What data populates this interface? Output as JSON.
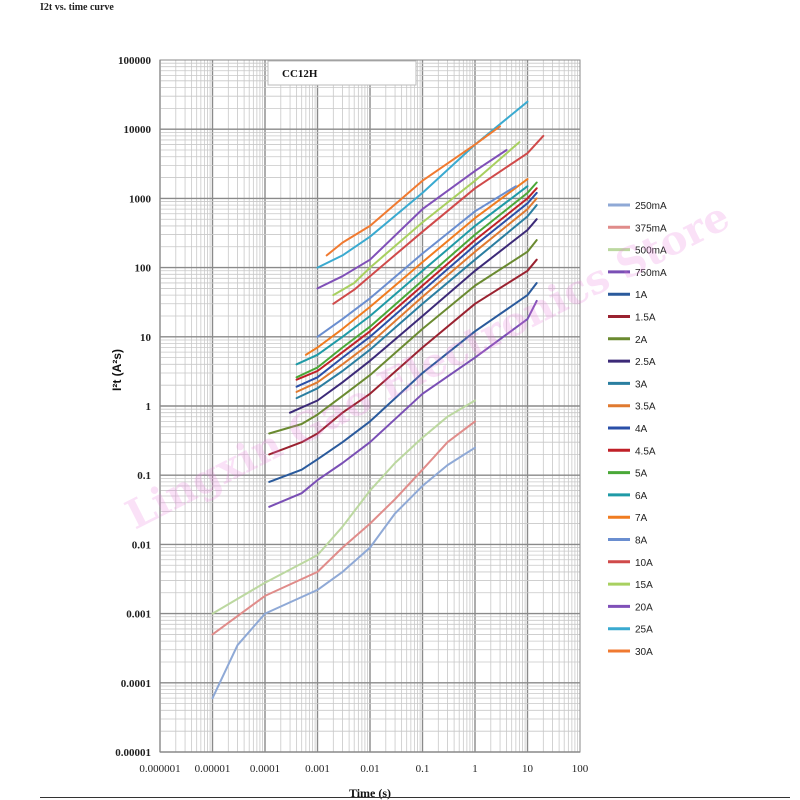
{
  "page_title": "I2t vs. time curve",
  "watermark": "Lingxin Gao Electronics Store",
  "chart_data": {
    "type": "line",
    "title": "CC12H",
    "xlabel": "Time (s)",
    "ylabel": "I²t (A²s)",
    "xscale": "log",
    "yscale": "log",
    "xlim": [
      1e-06,
      100
    ],
    "ylim": [
      1e-05,
      100000
    ],
    "grid": true,
    "legend_position": "right",
    "x_tick_labels": [
      "0.000001",
      "0.00001",
      "0.0001",
      "0.001",
      "0.01",
      "0.1",
      "1",
      "10",
      "100"
    ],
    "y_tick_labels": [
      "0.00001",
      "0.0001",
      "0.001",
      "0.01",
      "0.1",
      "1",
      "10",
      "100",
      "1000",
      "10000",
      "100000"
    ],
    "series": [
      {
        "name": "250mA",
        "color": "#8fa9d6",
        "points": [
          [
            1e-05,
            6e-05
          ],
          [
            3e-05,
            0.00035
          ],
          [
            0.0001,
            0.001
          ],
          [
            0.001,
            0.0022
          ],
          [
            0.003,
            0.004
          ],
          [
            0.01,
            0.009
          ],
          [
            0.03,
            0.028
          ],
          [
            0.1,
            0.07
          ],
          [
            0.3,
            0.14
          ],
          [
            1,
            0.25
          ]
        ]
      },
      {
        "name": "375mA",
        "color": "#e08c8a",
        "points": [
          [
            1e-05,
            0.0005
          ],
          [
            0.0001,
            0.0018
          ],
          [
            0.001,
            0.004
          ],
          [
            0.003,
            0.009
          ],
          [
            0.01,
            0.02
          ],
          [
            0.03,
            0.045
          ],
          [
            0.1,
            0.12
          ],
          [
            0.3,
            0.3
          ],
          [
            1,
            0.6
          ]
        ]
      },
      {
        "name": "500mA",
        "color": "#bcd8a0",
        "points": [
          [
            1e-05,
            0.001
          ],
          [
            0.0001,
            0.0028
          ],
          [
            0.001,
            0.007
          ],
          [
            0.003,
            0.018
          ],
          [
            0.01,
            0.06
          ],
          [
            0.03,
            0.15
          ],
          [
            0.1,
            0.35
          ],
          [
            0.3,
            0.7
          ],
          [
            1,
            1.2
          ]
        ]
      },
      {
        "name": "750mA",
        "color": "#7a4fb5",
        "points": [
          [
            0.00012,
            0.035
          ],
          [
            0.0005,
            0.055
          ],
          [
            0.001,
            0.085
          ],
          [
            0.003,
            0.15
          ],
          [
            0.01,
            0.3
          ],
          [
            0.1,
            1.5
          ],
          [
            1,
            5
          ],
          [
            10,
            18
          ],
          [
            15,
            33
          ]
        ]
      },
      {
        "name": "1A",
        "color": "#2a5a9c",
        "points": [
          [
            0.00012,
            0.08
          ],
          [
            0.0005,
            0.12
          ],
          [
            0.001,
            0.17
          ],
          [
            0.003,
            0.3
          ],
          [
            0.01,
            0.6
          ],
          [
            0.1,
            3
          ],
          [
            1,
            12
          ],
          [
            10,
            40
          ],
          [
            15,
            60
          ]
        ]
      },
      {
        "name": "1.5A",
        "color": "#9a2230",
        "points": [
          [
            0.00012,
            0.2
          ],
          [
            0.0005,
            0.3
          ],
          [
            0.001,
            0.4
          ],
          [
            0.003,
            0.8
          ],
          [
            0.01,
            1.5
          ],
          [
            0.1,
            7
          ],
          [
            1,
            30
          ],
          [
            10,
            90
          ],
          [
            15,
            130
          ]
        ]
      },
      {
        "name": "2A",
        "color": "#6a8a30",
        "points": [
          [
            0.00012,
            0.4
          ],
          [
            0.0005,
            0.55
          ],
          [
            0.001,
            0.75
          ],
          [
            0.003,
            1.4
          ],
          [
            0.01,
            2.8
          ],
          [
            0.1,
            13
          ],
          [
            1,
            55
          ],
          [
            10,
            170
          ],
          [
            15,
            250
          ]
        ]
      },
      {
        "name": "2.5A",
        "color": "#3c2a78",
        "points": [
          [
            0.0003,
            0.8
          ],
          [
            0.001,
            1.2
          ],
          [
            0.003,
            2.2
          ],
          [
            0.01,
            4.5
          ],
          [
            0.1,
            20
          ],
          [
            1,
            90
          ],
          [
            10,
            350
          ],
          [
            15,
            500
          ]
        ]
      },
      {
        "name": "3A",
        "color": "#2a7ea0",
        "points": [
          [
            0.0004,
            1.3
          ],
          [
            0.001,
            1.8
          ],
          [
            0.003,
            3.2
          ],
          [
            0.01,
            6.5
          ],
          [
            0.1,
            30
          ],
          [
            1,
            130
          ],
          [
            10,
            550
          ],
          [
            15,
            800
          ]
        ]
      },
      {
        "name": "3.5A",
        "color": "#e07a30",
        "points": [
          [
            0.0004,
            1.6
          ],
          [
            0.001,
            2.2
          ],
          [
            0.003,
            4
          ],
          [
            0.01,
            8
          ],
          [
            0.1,
            38
          ],
          [
            1,
            170
          ],
          [
            10,
            700
          ],
          [
            15,
            1000
          ]
        ]
      },
      {
        "name": "4A",
        "color": "#2a4fa8",
        "points": [
          [
            0.0004,
            1.9
          ],
          [
            0.001,
            2.6
          ],
          [
            0.003,
            5
          ],
          [
            0.01,
            10
          ],
          [
            0.1,
            46
          ],
          [
            1,
            210
          ],
          [
            10,
            850
          ],
          [
            15,
            1200
          ]
        ]
      },
      {
        "name": "4.5A",
        "color": "#c02028",
        "points": [
          [
            0.0004,
            2.4
          ],
          [
            0.001,
            3.2
          ],
          [
            0.003,
            6
          ],
          [
            0.01,
            12
          ],
          [
            0.1,
            55
          ],
          [
            1,
            250
          ],
          [
            10,
            1000
          ],
          [
            15,
            1400
          ]
        ]
      },
      {
        "name": "5A",
        "color": "#4aa838",
        "points": [
          [
            0.0004,
            2.6
          ],
          [
            0.001,
            3.6
          ],
          [
            0.003,
            7
          ],
          [
            0.01,
            14
          ],
          [
            0.1,
            65
          ],
          [
            1,
            300
          ],
          [
            10,
            1200
          ],
          [
            15,
            1700
          ]
        ]
      },
      {
        "name": "6A",
        "color": "#1f9aa6",
        "points": [
          [
            0.0004,
            4
          ],
          [
            0.001,
            5.5
          ],
          [
            0.003,
            10
          ],
          [
            0.01,
            20
          ],
          [
            0.1,
            90
          ],
          [
            1,
            400
          ],
          [
            10,
            1500
          ]
        ]
      },
      {
        "name": "7A",
        "color": "#f07c20",
        "points": [
          [
            0.0006,
            5.5
          ],
          [
            0.001,
            7
          ],
          [
            0.003,
            13
          ],
          [
            0.01,
            27
          ],
          [
            0.1,
            120
          ],
          [
            1,
            520
          ],
          [
            10,
            1900
          ]
        ]
      },
      {
        "name": "8A",
        "color": "#6a8ed0",
        "points": [
          [
            0.001,
            10
          ],
          [
            0.003,
            18
          ],
          [
            0.01,
            36
          ],
          [
            0.1,
            160
          ],
          [
            1,
            650
          ],
          [
            6,
            1500
          ]
        ]
      },
      {
        "name": "10A",
        "color": "#d04a4a",
        "points": [
          [
            0.002,
            30
          ],
          [
            0.005,
            48
          ],
          [
            0.01,
            75
          ],
          [
            0.1,
            330
          ],
          [
            1,
            1400
          ],
          [
            10,
            4500
          ],
          [
            20,
            8000
          ]
        ]
      },
      {
        "name": "15A",
        "color": "#a8d060",
        "points": [
          [
            0.002,
            40
          ],
          [
            0.005,
            60
          ],
          [
            0.01,
            100
          ],
          [
            0.1,
            450
          ],
          [
            1,
            1800
          ],
          [
            7,
            6500
          ]
        ]
      },
      {
        "name": "20A",
        "color": "#8050b8",
        "points": [
          [
            0.001,
            50
          ],
          [
            0.003,
            75
          ],
          [
            0.01,
            130
          ],
          [
            0.1,
            700
          ],
          [
            1,
            2500
          ],
          [
            4,
            5000
          ]
        ]
      },
      {
        "name": "25A",
        "color": "#3aaad0",
        "points": [
          [
            0.001,
            100
          ],
          [
            0.003,
            150
          ],
          [
            0.01,
            280
          ],
          [
            0.1,
            1200
          ],
          [
            1,
            6000
          ],
          [
            10,
            25000
          ]
        ]
      },
      {
        "name": "30A",
        "color": "#f07a30",
        "points": [
          [
            0.0015,
            150
          ],
          [
            0.003,
            230
          ],
          [
            0.01,
            400
          ],
          [
            0.1,
            1800
          ],
          [
            1,
            6000
          ],
          [
            3,
            11000
          ]
        ]
      }
    ]
  }
}
